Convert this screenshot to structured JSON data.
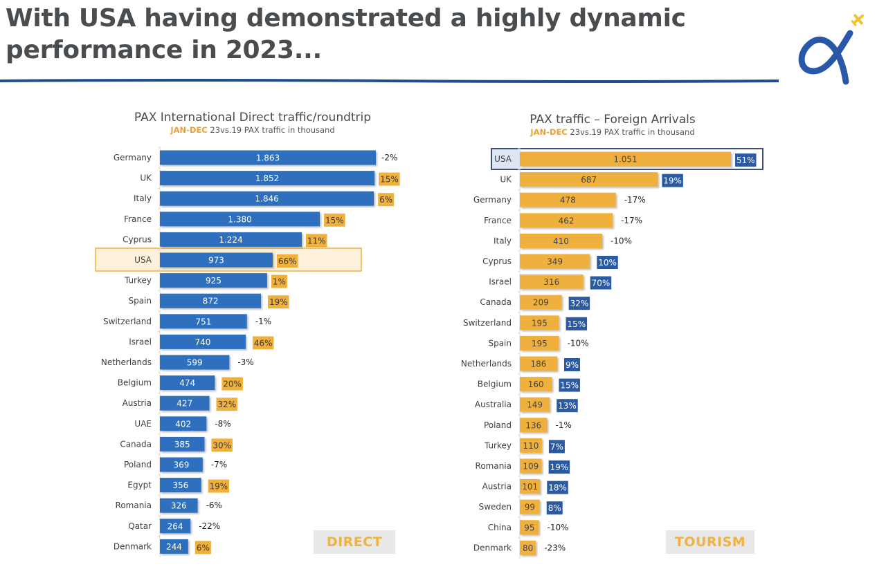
{
  "headline": {
    "line1": "With USA having demonstrated a highly dynamic",
    "line2": "performance in 2023..."
  },
  "logo": {
    "name": "alpha-airplane-logo"
  },
  "colors": {
    "blue": "#2f6fbd",
    "orange": "#f0b03c",
    "dark_blue_badge": "#2b5aa0",
    "highlight_fill": "#fdf1dc",
    "highlight_border": "#f0b03c",
    "highlight_navy": "#2c3e66",
    "subtitle_accent": "#e9a23b",
    "label_badge_bg": "#e8e8e8"
  },
  "badges": {
    "direct": "DIRECT",
    "tourism": "TOURISM"
  },
  "chart_data": [
    {
      "type": "bar",
      "orientation": "horizontal",
      "title": "PAX International Direct traffic/roundtrip",
      "subtitle_accent": "JAN-DEC",
      "subtitle_rest": " 23vs.19 PAX traffic in thousand",
      "xlabel": "",
      "ylabel": "",
      "unit": "PAX traffic in thousand",
      "highlight": "USA",
      "categories": [
        "Germany",
        "UK",
        "Italy",
        "France",
        "Cyprus",
        "USA",
        "Turkey",
        "Spain",
        "Switzerland",
        "Israel",
        "Netherlands",
        "Belgium",
        "Austria",
        "UAE",
        "Canada",
        "Poland",
        "Egypt",
        "Romania",
        "Qatar",
        "Denmark"
      ],
      "values": [
        1863,
        1852,
        1846,
        1380,
        1224,
        973,
        925,
        872,
        751,
        740,
        599,
        474,
        427,
        402,
        385,
        369,
        356,
        326,
        264,
        244
      ],
      "value_labels": [
        "1.863",
        "1.852",
        "1.846",
        "1.380",
        "1.224",
        "973",
        "925",
        "872",
        "751",
        "740",
        "599",
        "474",
        "427",
        "402",
        "385",
        "369",
        "356",
        "326",
        "264",
        "244"
      ],
      "change_vs_2019_pct": [
        -2,
        15,
        6,
        15,
        11,
        66,
        1,
        19,
        -1,
        46,
        -3,
        20,
        32,
        -8,
        30,
        -7,
        19,
        -6,
        -22,
        6
      ],
      "change_labels": [
        "-2%",
        "15%",
        "6%",
        "15%",
        "11%",
        "66%",
        "1%",
        "19%",
        "-1%",
        "46%",
        "-3%",
        "20%",
        "32%",
        "-8%",
        "30%",
        "-7%",
        "19%",
        "-6%",
        "-22%",
        "6%"
      ],
      "badge": "DIRECT"
    },
    {
      "type": "bar",
      "orientation": "horizontal",
      "title": "PAX traffic – Foreign Arrivals",
      "subtitle_accent": "JAN-DEC",
      "subtitle_rest": " 23vs.19 PAX traffic in thousand",
      "xlabel": "",
      "ylabel": "",
      "unit": "PAX traffic in thousand",
      "highlight": "USA",
      "categories": [
        "USA",
        "UK",
        "Germany",
        "France",
        "Italy",
        "Cyprus",
        "Israel",
        "Canada",
        "Switzerland",
        "Spain",
        "Netherlands",
        "Belgium",
        "Australia",
        "Poland",
        "Turkey",
        "Romania",
        "Austria",
        "Sweden",
        "China",
        "Denmark"
      ],
      "values": [
        1051,
        687,
        478,
        462,
        410,
        349,
        316,
        209,
        195,
        195,
        186,
        160,
        149,
        136,
        110,
        109,
        101,
        99,
        95,
        80
      ],
      "value_labels": [
        "1.051",
        "687",
        "478",
        "462",
        "410",
        "349",
        "316",
        "209",
        "195",
        "195",
        "186",
        "160",
        "149",
        "136",
        "110",
        "109",
        "101",
        "99",
        "95",
        "80"
      ],
      "change_vs_2019_pct": [
        51,
        19,
        -17,
        -17,
        -10,
        10,
        70,
        32,
        15,
        -10,
        9,
        15,
        13,
        -1,
        7,
        19,
        18,
        8,
        -10,
        -23
      ],
      "change_labels": [
        "51%",
        "19%",
        "-17%",
        "-17%",
        "-10%",
        "10%",
        "70%",
        "32%",
        "15%",
        "-10%",
        "9%",
        "15%",
        "13%",
        "-1%",
        "7%",
        "19%",
        "18%",
        "8%",
        "-10%",
        "-23%"
      ],
      "badge": "TOURISM"
    }
  ]
}
